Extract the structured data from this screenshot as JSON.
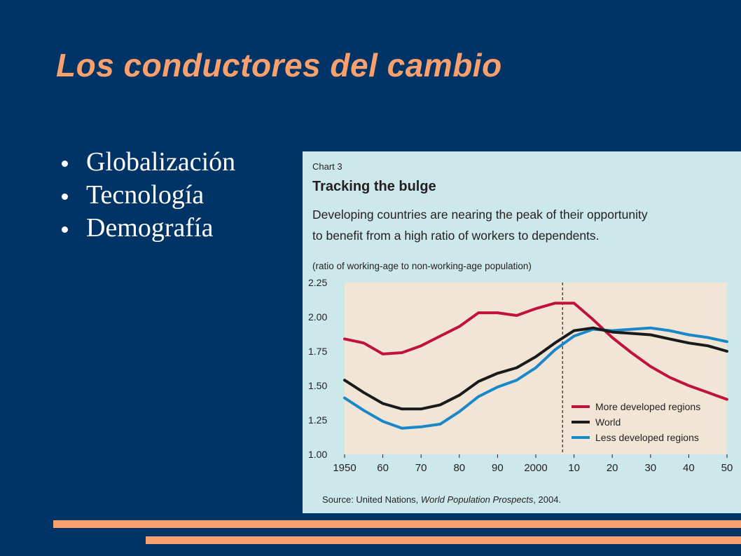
{
  "slide": {
    "title": "Los conductores del cambio",
    "bullets": [
      "Globalización",
      "Tecnología",
      "Demografía"
    ]
  },
  "colors": {
    "background": "#003466",
    "title": "#f9a06f",
    "accent_bars": "#f9a06f",
    "chart_panel": "#cde8ea",
    "plot_area": "#f1e5d6"
  },
  "chart_data": {
    "type": "line",
    "chart_label": "Chart 3",
    "title": "Tracking the bulge",
    "subtitle_lines": [
      "Developing countries are nearing the peak of their opportunity",
      "to benefit from a high ratio of workers to dependents."
    ],
    "ylabel": "(ratio of working-age to non-working-age population)",
    "ylim": [
      1.0,
      2.25
    ],
    "xlim": [
      1950,
      2050
    ],
    "y_ticks": [
      "2.25",
      "2.00",
      "1.75",
      "1.50",
      "1.25",
      "1.00"
    ],
    "y_tick_values": [
      2.25,
      2.0,
      1.75,
      1.5,
      1.25,
      1.0
    ],
    "x_ticks": [
      "1950",
      "60",
      "70",
      "80",
      "90",
      "2000",
      "10",
      "20",
      "30",
      "40",
      "50"
    ],
    "x_tick_values": [
      1950,
      1960,
      1970,
      1980,
      1990,
      2000,
      2010,
      2020,
      2030,
      2040,
      2050
    ],
    "projection_start": 2007,
    "grid": false,
    "legend_position": "bottom-right",
    "x": [
      1950,
      1955,
      1960,
      1965,
      1970,
      1975,
      1980,
      1985,
      1990,
      1995,
      2000,
      2005,
      2010,
      2015,
      2020,
      2025,
      2030,
      2035,
      2040,
      2045,
      2050
    ],
    "series": [
      {
        "name": "More developed regions",
        "color": "#c0133b",
        "values": [
          1.84,
          1.81,
          1.73,
          1.74,
          1.79,
          1.86,
          1.93,
          2.03,
          2.03,
          2.01,
          2.06,
          2.1,
          2.1,
          1.98,
          1.85,
          1.74,
          1.64,
          1.56,
          1.5,
          1.45,
          1.4
        ]
      },
      {
        "name": "World",
        "color": "#1a1a1a",
        "values": [
          1.54,
          1.45,
          1.37,
          1.33,
          1.33,
          1.36,
          1.43,
          1.53,
          1.59,
          1.63,
          1.71,
          1.81,
          1.9,
          1.92,
          1.89,
          1.88,
          1.87,
          1.84,
          1.81,
          1.79,
          1.75
        ]
      },
      {
        "name": "Less developed regions",
        "color": "#1a87c8",
        "values": [
          1.41,
          1.32,
          1.24,
          1.19,
          1.2,
          1.22,
          1.31,
          1.42,
          1.49,
          1.54,
          1.63,
          1.76,
          1.86,
          1.91,
          1.9,
          1.91,
          1.92,
          1.9,
          1.87,
          1.85,
          1.82
        ]
      }
    ],
    "source_prefix": "Source: United Nations, ",
    "source_title": "World Population Prospects",
    "source_suffix": ", 2004."
  }
}
